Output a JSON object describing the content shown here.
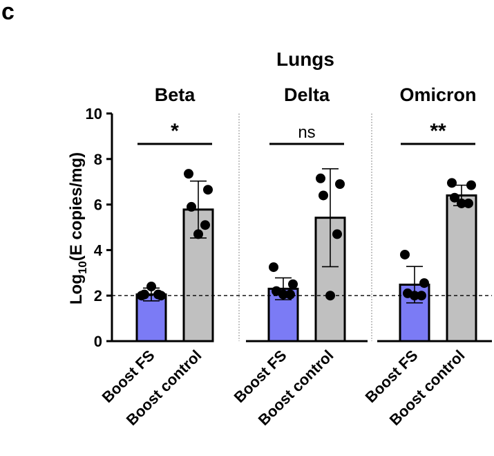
{
  "panel_label": "c",
  "chart_data": {
    "type": "bar",
    "title": "Lungs",
    "ylabel_main": "Log",
    "ylabel_sub": "10",
    "ylabel_rest": "(E copies/mg)",
    "ylim": [
      0,
      10
    ],
    "yticks": [
      "0",
      "2",
      "4",
      "6",
      "8",
      "10"
    ],
    "reference_line": 2,
    "groups": [
      {
        "name": "Beta",
        "significance": "*",
        "bars": [
          {
            "label": "Boost FS",
            "value": 2.05,
            "sd": 0.28,
            "color": "#7b7bf5",
            "points": [
              2.0,
              2.0,
              2.05,
              2.05,
              2.4
            ]
          },
          {
            "label": "Boost control",
            "value": 5.78,
            "sd": 1.25,
            "color": "#c0c0c0",
            "points": [
              7.35,
              6.65,
              5.9,
              5.1,
              4.7
            ]
          }
        ]
      },
      {
        "name": "Delta",
        "significance": "ns",
        "bars": [
          {
            "label": "Boost FS",
            "value": 2.3,
            "sd": 0.48,
            "color": "#7b7bf5",
            "points": [
              3.25,
              2.5,
              2.2,
              2.05,
              2.05
            ]
          },
          {
            "label": "Boost control",
            "value": 5.42,
            "sd": 2.15,
            "color": "#c0c0c0",
            "points": [
              7.15,
              6.9,
              6.4,
              4.7,
              2.0
            ]
          }
        ]
      },
      {
        "name": "Omicron",
        "significance": "**",
        "bars": [
          {
            "label": "Boost FS",
            "value": 2.48,
            "sd": 0.8,
            "color": "#7b7bf5",
            "points": [
              3.8,
              2.55,
              2.1,
              2.0,
              2.0
            ]
          },
          {
            "label": "Boost control",
            "value": 6.4,
            "sd": 0.45,
            "color": "#c0c0c0",
            "points": [
              6.95,
              6.85,
              6.3,
              6.05,
              6.05
            ]
          }
        ]
      }
    ]
  }
}
